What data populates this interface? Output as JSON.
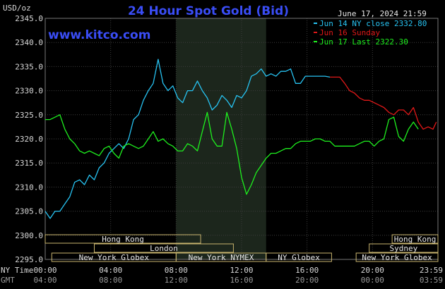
{
  "chart_data": {
    "type": "line",
    "title": "24 Hour Spot Gold (Bid)",
    "watermark": "www.kitco.com",
    "timestamp": "June 17, 2024 21:59",
    "ylabel": "USD/oz",
    "ylim": [
      2295,
      2345
    ],
    "yticks": [
      "2345.0",
      "2340.0",
      "2335.0",
      "2330.0",
      "2325.0",
      "2320.0",
      "2315.0",
      "2310.0",
      "2305.0",
      "2300.0",
      "2295.0"
    ],
    "xlim": [
      0,
      24
    ],
    "x_axis_rows": [
      {
        "caption": "NY Time",
        "labels": [
          "00:00",
          "04:00",
          "08:00",
          "12:00",
          "16:00",
          "20:00",
          "23:59"
        ]
      },
      {
        "caption": "GMT",
        "labels": [
          "04:00",
          "08:00",
          "12:00",
          "16:00",
          "20:00",
          "00:00",
          "03:59"
        ]
      }
    ],
    "grid": true,
    "legend_position": "top-right",
    "series": [
      {
        "name": "Jun 14 NY close 2332.80",
        "color": "#27c3f2",
        "x": [
          0,
          0.3,
          0.6,
          0.9,
          1.2,
          1.5,
          1.8,
          2.1,
          2.4,
          2.7,
          3.0,
          3.3,
          3.6,
          3.9,
          4.2,
          4.5,
          4.8,
          5.1,
          5.4,
          5.7,
          6.0,
          6.3,
          6.6,
          6.9,
          7.2,
          7.5,
          7.8,
          8.1,
          8.4,
          8.7,
          9.0,
          9.3,
          9.6,
          9.9,
          10.2,
          10.5,
          10.8,
          11.1,
          11.4,
          11.7,
          12.0,
          12.3,
          12.6,
          12.9,
          13.2,
          13.5,
          13.8,
          14.1,
          14.4,
          14.7,
          15.0,
          15.3,
          15.6,
          15.9,
          16.2,
          16.5,
          16.8,
          17.1,
          17.4
        ],
        "values": [
          2305,
          2303.5,
          2305,
          2305,
          2306.5,
          2308,
          2311,
          2311.5,
          2310.5,
          2312.5,
          2311.5,
          2314,
          2315,
          2317,
          2318,
          2319,
          2318,
          2320,
          2324,
          2325,
          2328,
          2330,
          2331.5,
          2336.5,
          2331.5,
          2330,
          2331,
          2328.5,
          2327.5,
          2330,
          2330,
          2332,
          2330,
          2328.5,
          2326,
          2327,
          2329,
          2328,
          2326.5,
          2329,
          2328.5,
          2330,
          2333,
          2333.5,
          2334.5,
          2333,
          2333.5,
          2333,
          2334,
          2334,
          2334.5,
          2331.5,
          2331.5,
          2333,
          2333,
          2333,
          2333,
          2333,
          2332.8
        ]
      },
      {
        "name": "Jun 16 Sunday",
        "color": "#e01818",
        "x": [
          17.4,
          18.0,
          18.3,
          18.6,
          18.9,
          19.2,
          19.5,
          19.8,
          20.1,
          20.4,
          20.7,
          21.0,
          21.3,
          21.6,
          21.9,
          22.2,
          22.5,
          22.8,
          23.1,
          23.4,
          23.7,
          23.9
        ],
        "values": [
          2332.8,
          2332.8,
          2331.5,
          2330,
          2329.5,
          2328.5,
          2328,
          2328,
          2327.5,
          2327,
          2326.5,
          2325.5,
          2325,
          2326,
          2326,
          2325,
          2326.5,
          2323.5,
          2322,
          2322.5,
          2322,
          2323.5
        ]
      },
      {
        "name": "Jun 17 Last 2322.30",
        "color": "#1ef01e",
        "x": [
          0,
          0.3,
          0.6,
          0.9,
          1.2,
          1.5,
          1.8,
          2.1,
          2.4,
          2.7,
          3.0,
          3.3,
          3.6,
          3.9,
          4.2,
          4.5,
          4.8,
          5.1,
          5.4,
          5.7,
          6.0,
          6.3,
          6.6,
          6.9,
          7.2,
          7.5,
          7.8,
          8.1,
          8.4,
          8.7,
          9.0,
          9.3,
          9.6,
          9.9,
          10.2,
          10.5,
          10.8,
          11.1,
          11.4,
          11.7,
          12.0,
          12.3,
          12.6,
          12.9,
          13.2,
          13.5,
          13.8,
          14.1,
          14.4,
          14.7,
          15.0,
          15.3,
          15.6,
          15.9,
          16.2,
          16.5,
          16.8,
          17.1,
          17.4,
          17.7,
          18.0,
          18.3,
          18.6,
          18.9,
          19.2,
          19.5,
          19.8,
          20.1,
          20.4,
          20.7,
          21.0,
          21.3,
          21.6,
          21.9,
          22.2,
          22.5,
          22.8
        ],
        "values": [
          2324,
          2324,
          2324.5,
          2325,
          2322,
          2320,
          2319,
          2317.5,
          2317,
          2317.5,
          2317,
          2316.5,
          2318,
          2318.5,
          2317,
          2316,
          2318.5,
          2319,
          2318.5,
          2318,
          2318.5,
          2320,
          2321.5,
          2319.5,
          2320,
          2319,
          2318.5,
          2317.5,
          2317.5,
          2319,
          2318.5,
          2317.5,
          2321.5,
          2325.5,
          2320,
          2318.5,
          2318.5,
          2325.5,
          2322,
          2318,
          2312,
          2308.5,
          2310.5,
          2313,
          2314.5,
          2316,
          2317,
          2317,
          2317.5,
          2318,
          2318,
          2319,
          2319.5,
          2319.5,
          2319.5,
          2320,
          2320,
          2319.5,
          2319.5,
          2318.5,
          2318.5,
          2318.5,
          2318.5,
          2318.5,
          2319,
          2319.5,
          2319.5,
          2318.5,
          2319.5,
          2320,
          2324,
          2324.5,
          2320.5,
          2319.5,
          2322,
          2323.5,
          2322
        ]
      }
    ],
    "ny_comex_session": {
      "start": 8.0,
      "end": 13.5
    },
    "market_sessions": [
      {
        "label": "Hong Kong",
        "start": 0,
        "end": 9.5,
        "row": 0
      },
      {
        "label": "Hong Kong",
        "start": 21.2,
        "end": 24,
        "row": 0
      },
      {
        "label": "London",
        "start": 3.0,
        "end": 11.5,
        "row": 1
      },
      {
        "label": "Sydney",
        "start": 19.8,
        "end": 24,
        "row": 1
      },
      {
        "label": "New York Globex",
        "start": 0.4,
        "end": 8.0,
        "row": 2
      },
      {
        "label": "New York NYMEX",
        "start": 8.0,
        "end": 13.5,
        "row": 2
      },
      {
        "label": "NY Globex",
        "start": 13.5,
        "end": 17.5,
        "row": 2
      },
      {
        "label": "New York Globex",
        "start": 19.0,
        "end": 24,
        "row": 2
      }
    ]
  }
}
